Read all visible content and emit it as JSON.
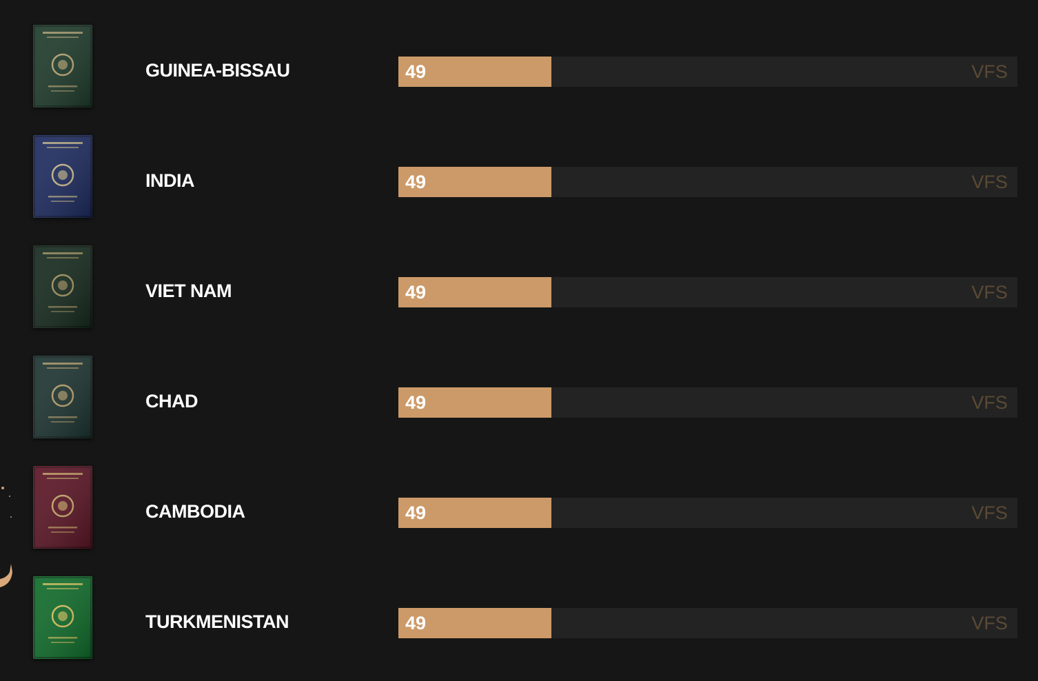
{
  "max_score": 198,
  "rows": [
    {
      "country": "GUINEA-BISSAU",
      "score": 49,
      "tag": "VFS",
      "cover_color": "#1d3a2a",
      "emblem_color": "#b8a574",
      "icon": "guinea-bissau-passport-icon"
    },
    {
      "country": "INDIA",
      "score": 49,
      "tag": "VFS",
      "cover_color": "#1c2a5e",
      "emblem_color": "#c9b98a",
      "icon": "india-passport-icon"
    },
    {
      "country": "VIET NAM",
      "score": 49,
      "tag": "VFS",
      "cover_color": "#15291d",
      "emblem_color": "#a3925f",
      "icon": "viet-nam-passport-icon"
    },
    {
      "country": "CHAD",
      "score": 49,
      "tag": "VFS",
      "cover_color": "#1c3330",
      "emblem_color": "#b7a06b",
      "icon": "chad-passport-icon"
    },
    {
      "country": "CAMBODIA",
      "score": 49,
      "tag": "VFS",
      "cover_color": "#5a1424",
      "emblem_color": "#c7a868",
      "icon": "cambodia-passport-icon"
    },
    {
      "country": "TURKMENISTAN",
      "score": 49,
      "tag": "VFS",
      "cover_color": "#0f6b2a",
      "emblem_color": "#d8c25a",
      "icon": "turkmenistan-passport-icon"
    }
  ]
}
